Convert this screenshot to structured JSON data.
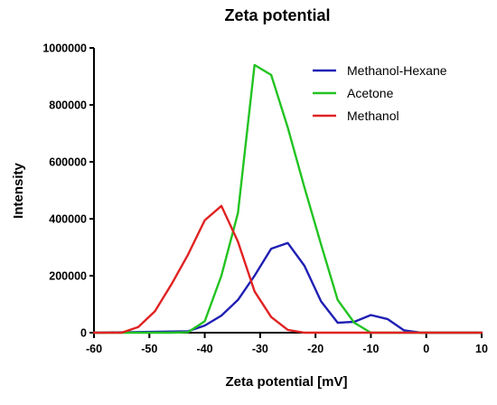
{
  "chart_data": {
    "type": "line",
    "title": "Zeta potential",
    "xlabel": "Zeta potential [mV]",
    "ylabel": "Intensity",
    "xlim": [
      -60,
      10
    ],
    "ylim": [
      0,
      1000000
    ],
    "xticks": [
      -60,
      -50,
      -40,
      -30,
      -20,
      -10,
      0,
      10
    ],
    "xtick_labels": [
      "-60",
      "-50",
      "-40",
      "-30",
      "-20",
      "-10",
      "0",
      "10"
    ],
    "yticks": [
      0,
      200000,
      400000,
      600000,
      800000,
      1000000
    ],
    "ytick_labels": [
      "0",
      "200000",
      "400000",
      "600000",
      "800000",
      "1000000"
    ],
    "legend_position": "top-right",
    "grid": false,
    "series": [
      {
        "name": "Methanol-Hexane",
        "color": "#1f1fb4",
        "x": [
          -60,
          -43,
          -40,
          -37,
          -34,
          -31,
          -28,
          -25,
          -22,
          -19,
          -16,
          -13,
          -10,
          -7,
          -4,
          -1,
          2,
          10
        ],
        "y": [
          0,
          5000,
          25000,
          60000,
          115000,
          200000,
          295000,
          315000,
          235000,
          110000,
          35000,
          38000,
          62000,
          48000,
          8000,
          0,
          0,
          0
        ]
      },
      {
        "name": "Acetone",
        "color": "#22c322",
        "x": [
          -60,
          -46,
          -43,
          -40,
          -37,
          -34,
          -31,
          -28,
          -25,
          -22,
          -19,
          -16,
          -13,
          -10,
          -7,
          -4,
          10
        ],
        "y": [
          0,
          0,
          2000,
          40000,
          200000,
          420000,
          940000,
          905000,
          720000,
          510000,
          310000,
          115000,
          35000,
          0,
          0,
          0,
          0
        ]
      },
      {
        "name": "Methanol",
        "color": "#e02222",
        "x": [
          -60,
          -55,
          -52,
          -49,
          -46,
          -43,
          -40,
          -37,
          -34,
          -31,
          -28,
          -25,
          -22,
          -19,
          -16,
          10
        ],
        "y": [
          0,
          0,
          20000,
          75000,
          170000,
          275000,
          395000,
          445000,
          320000,
          145000,
          55000,
          10000,
          0,
          0,
          0,
          0
        ]
      }
    ]
  }
}
